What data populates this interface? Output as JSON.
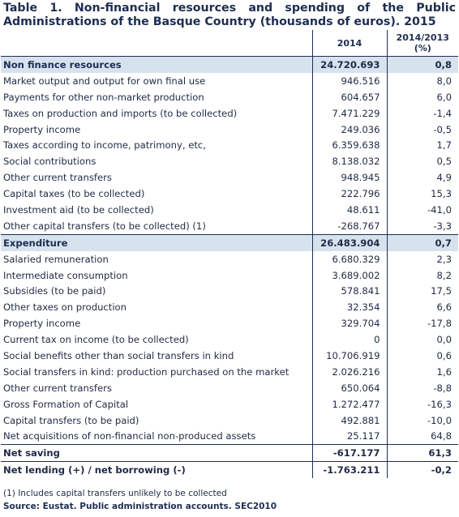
{
  "title": "Table 1. Non-financial resources and spending of the Public Administrations of the Basque Country (thousands of euros). 2015",
  "header": {
    "col_year": "2014",
    "col_change_line1": "2014/2013",
    "col_change_line2": "(%)"
  },
  "rows": [
    {
      "label": "Non finance resources",
      "value": "24.720.693",
      "change": "0,8"
    },
    {
      "label": "Market output and output for own final use",
      "value": "946.516",
      "change": "8,0"
    },
    {
      "label": "Payments for other non-market production",
      "value": "604.657",
      "change": "6,0"
    },
    {
      "label": "Taxes on production and imports (to be collected)",
      "value": "7.471.229",
      "change": "-1,4"
    },
    {
      "label": "Property income",
      "value": "249.036",
      "change": "-0,5"
    },
    {
      "label": "Taxes according to income, patrimony, etc,",
      "value": "6.359.638",
      "change": "1,7"
    },
    {
      "label": "Social contributions",
      "value": "8.138.032",
      "change": "0,5"
    },
    {
      "label": "Other current transfers",
      "value": "948.945",
      "change": "4,9"
    },
    {
      "label": "Capital taxes (to be collected)",
      "value": "222.796",
      "change": "15,3"
    },
    {
      "label": "Investment aid (to be collected)",
      "value": "48.611",
      "change": "-41,0"
    },
    {
      "label": "Other capital transfers (to be collected) (1)",
      "value": "-268.767",
      "change": "-3,3"
    },
    {
      "label": "Expenditure",
      "value": "26.483.904",
      "change": "0,7"
    },
    {
      "label": "Salaried remuneration",
      "value": "6.680.329",
      "change": "2,3"
    },
    {
      "label": "Intermediate consumption",
      "value": "3.689.002",
      "change": "8,2"
    },
    {
      "label": "Subsidies (to be paid)",
      "value": "578.841",
      "change": "17,5"
    },
    {
      "label": "Other taxes on production",
      "value": "32.354",
      "change": "6,6"
    },
    {
      "label": "Property income",
      "value": "329.704",
      "change": "-17,8"
    },
    {
      "label": "Current tax on income (to be collected)",
      "value": "0",
      "change": "0,0"
    },
    {
      "label": "Social benefits other than social transfers in kind",
      "value": "10.706.919",
      "change": "0,6"
    },
    {
      "label": "Social transfers in kind: production purchased on the market",
      "value": "2.026.216",
      "change": "1,6"
    },
    {
      "label": "Other current transfers",
      "value": "650.064",
      "change": "-8,8"
    },
    {
      "label": "Gross Formation of Capital",
      "value": "1.272.477",
      "change": "-16,3"
    },
    {
      "label": "Capital transfers (to be paid)",
      "value": "492.881",
      "change": "-10,0"
    },
    {
      "label": "Net acquisitions of non-financial non-produced assets",
      "value": "25.117",
      "change": "64,8"
    },
    {
      "label": "Net saving",
      "value": "-617.177",
      "change": "61,3"
    },
    {
      "label": "Net lending (+) / net borrowing (-)",
      "value": "-1.763.211",
      "change": "-0,2"
    }
  ],
  "footnote": "(1) Includes capital transfers unlikely to be collected",
  "source": "Source: Eustat. Public administration accounts. SEC2010"
}
